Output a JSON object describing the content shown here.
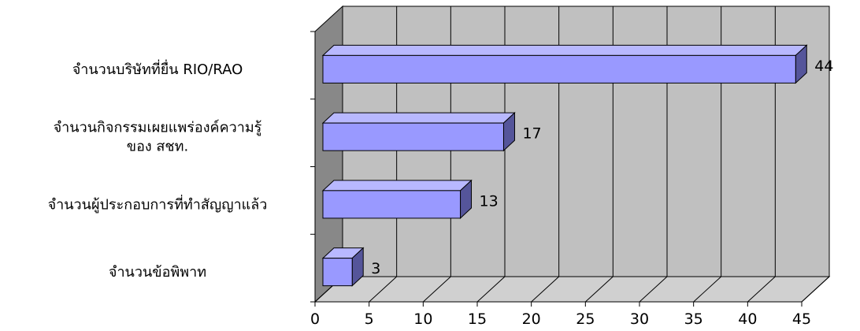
{
  "chart_data": {
    "type": "bar",
    "orientation": "horizontal",
    "three_d": true,
    "categories": [
      [
        "จำนวนบริษัทที่ยื่น RIO/RAO"
      ],
      [
        "จำนวนกิจกรรมเผยแพร่องค์ความรู้",
        "ของ สชท."
      ],
      [
        "จำนวนผู้ประกอบการที่ทำสัญญาแล้ว"
      ],
      [
        "จำนวนข้อพิพาท"
      ]
    ],
    "values": [
      44,
      17,
      13,
      3
    ],
    "data_labels": [
      "44",
      "17",
      "13",
      "3"
    ],
    "xlim": [
      0,
      45
    ],
    "x_ticks": [
      "0",
      "5",
      "10",
      "15",
      "20",
      "25",
      "30",
      "35",
      "40",
      "45"
    ],
    "grid": true,
    "legend": "none",
    "colors": {
      "bar_front": "#9999ff",
      "bar_top": "#b8b8ff",
      "bar_side": "#55559a",
      "plot_back": "#c0c0c0",
      "plot_floor": "#d0d0d0",
      "plot_side": "#888888"
    }
  }
}
